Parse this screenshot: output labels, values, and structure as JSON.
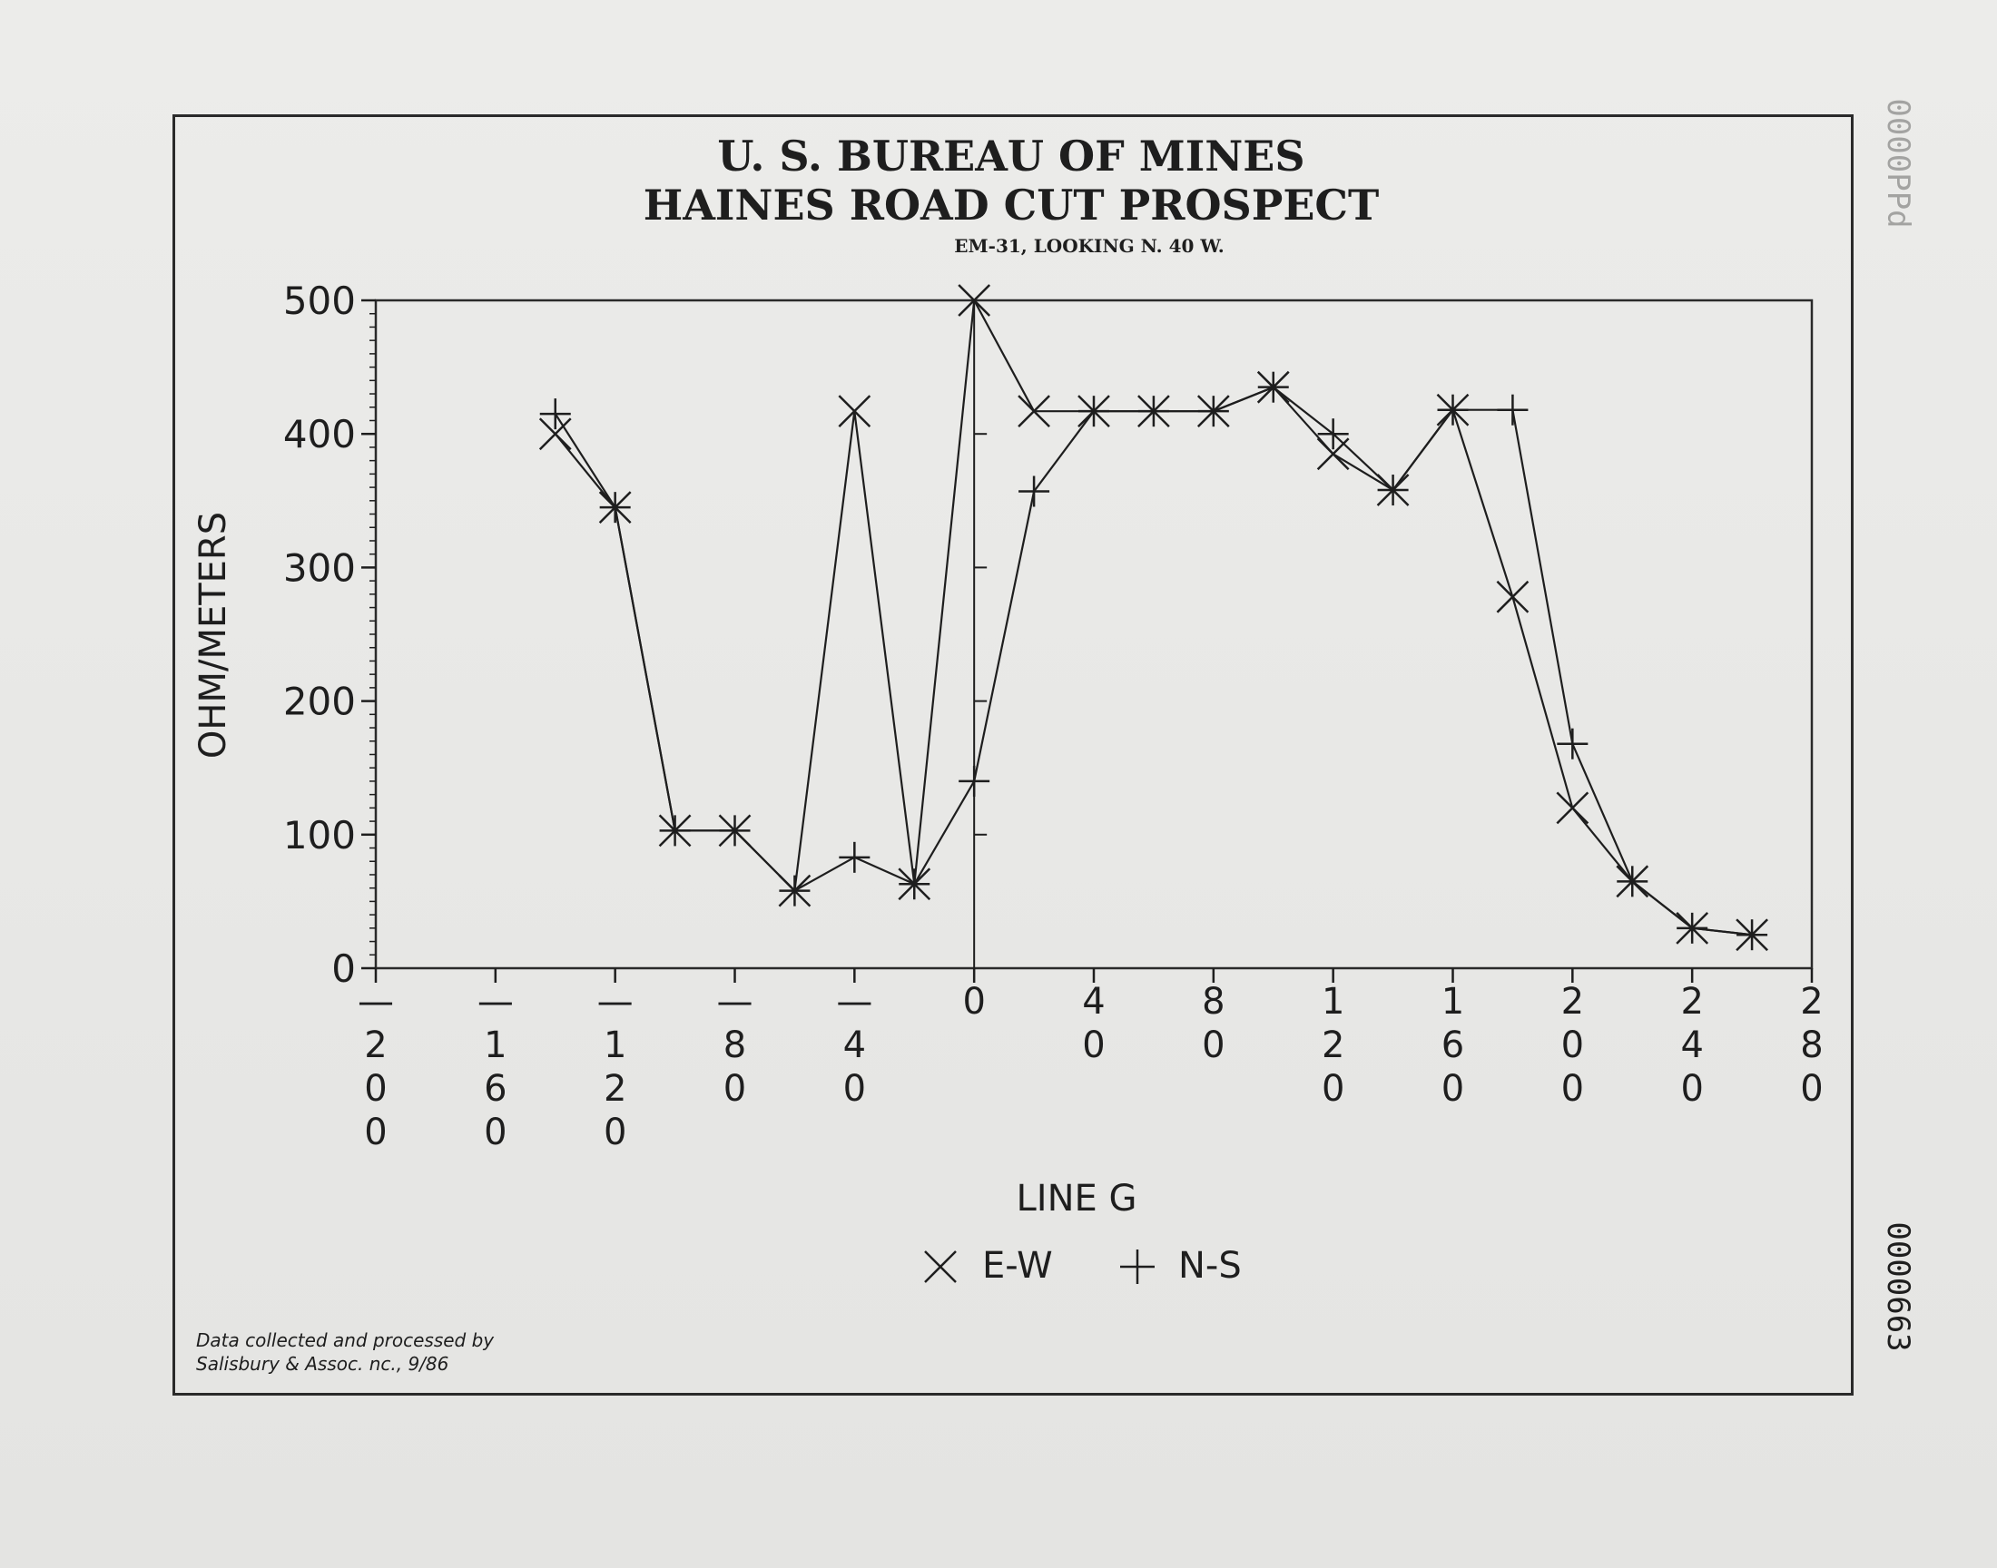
{
  "chart_data": {
    "type": "line",
    "title": "U. S. BUREAU OF MINES",
    "subtitle": "HAINES ROAD CUT PROSPECT",
    "caption": "EM-31, LOOKING N. 40 W.",
    "xlabel": "LINE G",
    "ylabel": "OHM/METERS",
    "xlim": [
      -200,
      280
    ],
    "ylim": [
      0,
      500
    ],
    "x_ticks": [
      -200,
      -160,
      -120,
      -80,
      -40,
      0,
      40,
      80,
      120,
      160,
      200,
      240,
      280
    ],
    "x_tick_labels": [
      "-200",
      "-160",
      "-120",
      "-80",
      "-40",
      "0",
      "40",
      "80",
      "120",
      "160",
      "200",
      "240",
      "280"
    ],
    "y_ticks": [
      0,
      100,
      200,
      300,
      400,
      500
    ],
    "y_tick_labels": [
      "0",
      "100",
      "200",
      "300",
      "400",
      "500"
    ],
    "grid": false,
    "legend_position": "bottom-center",
    "series": [
      {
        "name": "E-W",
        "marker": "x",
        "x": [
          -140,
          -120,
          -100,
          -80,
          -60,
          -40,
          -20,
          0,
          20,
          40,
          60,
          80,
          100,
          120,
          140,
          160,
          180,
          200,
          220,
          240,
          260
        ],
        "y": [
          400,
          345,
          103,
          103,
          58,
          417,
          63,
          500,
          417,
          417,
          417,
          417,
          435,
          385,
          358,
          418,
          278,
          120,
          65,
          30,
          25
        ]
      },
      {
        "name": "N-S",
        "marker": "plus",
        "x": [
          -140,
          -120,
          -100,
          -80,
          -60,
          -40,
          -20,
          0,
          20,
          40,
          60,
          80,
          100,
          120,
          140,
          160,
          180,
          200,
          220,
          240,
          260
        ],
        "y": [
          415,
          345,
          103,
          103,
          58,
          83,
          63,
          140,
          357,
          417,
          417,
          417,
          435,
          400,
          358,
          418,
          418,
          168,
          65,
          30,
          25
        ]
      }
    ]
  },
  "legend": {
    "ew_label": "E-W",
    "ns_label": "N-S"
  },
  "footer": {
    "credit_line1": "Data collected and processed by",
    "credit_line2": "Salisbury & Assoc. nc., 9/86"
  },
  "margin": {
    "code_top": "0000PPd",
    "code_side": "0000663"
  }
}
